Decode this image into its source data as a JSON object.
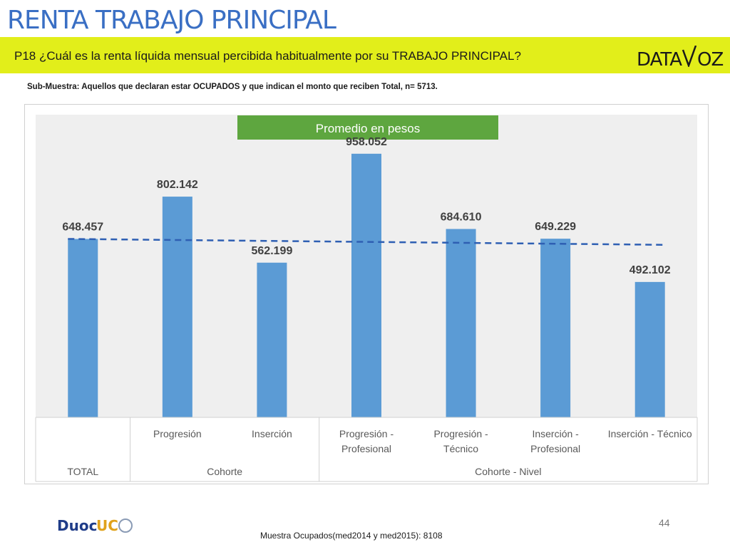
{
  "header": {
    "title": "RENTA TRABAJO PRINCIPAL",
    "question": "P18 ¿Cuál es la renta líquida mensual percibida habitualmente por su TRABAJO PRINCIPAL?",
    "logo_text_left": "DATA",
    "logo_text_right": "OZ"
  },
  "subsample": "Sub-Muestra: Aquellos que declaran estar OCUPADOS y que indican el monto que reciben Total, n= 5713.",
  "chart_data": {
    "type": "bar",
    "title": "Promedio en pesos",
    "categories": [
      "",
      "Progresión",
      "Inserción",
      "Progresión - Profesional",
      "Progresión - Técnico",
      "Inserción - Profesional",
      "Inserción - Técnico"
    ],
    "category_lines": [
      [
        ""
      ],
      [
        "Progresión"
      ],
      [
        "Inserción"
      ],
      [
        "Progresión -",
        "Profesional"
      ],
      [
        "Progresión -",
        "Técnico"
      ],
      [
        "Inserción -",
        "Profesional"
      ],
      [
        "Inserción - Técnico"
      ]
    ],
    "groups": [
      {
        "label": "TOTAL",
        "start": 0,
        "end": 0
      },
      {
        "label": "Cohorte",
        "start": 1,
        "end": 2
      },
      {
        "label": "Cohorte - Nivel",
        "start": 3,
        "end": 6
      }
    ],
    "values": [
      648457,
      802142,
      562199,
      958052,
      684610,
      649229,
      492102
    ],
    "value_labels": [
      "648.457",
      "802.142",
      "562.199",
      "958.052",
      "684.610",
      "649.229",
      "492.102"
    ],
    "trendline": {
      "style": "dashed",
      "start": 648457,
      "end": 627000
    },
    "ylim": [
      0,
      1100000
    ],
    "colors": {
      "bar": "#5b9bd5",
      "trend": "#2e5fb3",
      "title_bg": "#5ea63f",
      "plot_bg": "#efefef"
    }
  },
  "footer": {
    "logo_left": "Duoc",
    "logo_right": "UC",
    "page_number": "44",
    "note": "Muestra Ocupados(med2014 y med2015): 8108"
  }
}
